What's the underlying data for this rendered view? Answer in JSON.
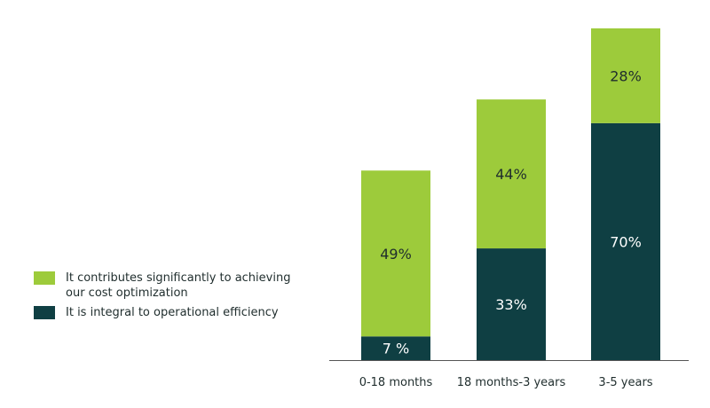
{
  "chart_data": {
    "type": "bar",
    "stacked": true,
    "categories": [
      "0-18 months",
      "18 months-3 years",
      "3-5 years"
    ],
    "series": [
      {
        "name": "It is integral to operational efficiency",
        "values": [
          7,
          33,
          70
        ],
        "labels": [
          "7 %",
          "33%",
          "70%"
        ],
        "color": "#0f3f43",
        "label_color": "#ffffff"
      },
      {
        "name": "It contributes significantly to achieving our cost optimization",
        "values": [
          49,
          44,
          28
        ],
        "labels": [
          "49%",
          "44%",
          "28%"
        ],
        "color": "#9dcb3b",
        "label_color": "#1f2d2d"
      }
    ],
    "ylim": [
      0,
      100
    ],
    "grid": false,
    "legend_position": "left"
  },
  "legend": {
    "items": [
      {
        "label": "It contributes significantly to achieving our cost optimization",
        "color": "#9dcb3b"
      },
      {
        "label": "It is integral to operational efficiency",
        "color": "#0f3f43"
      }
    ]
  }
}
